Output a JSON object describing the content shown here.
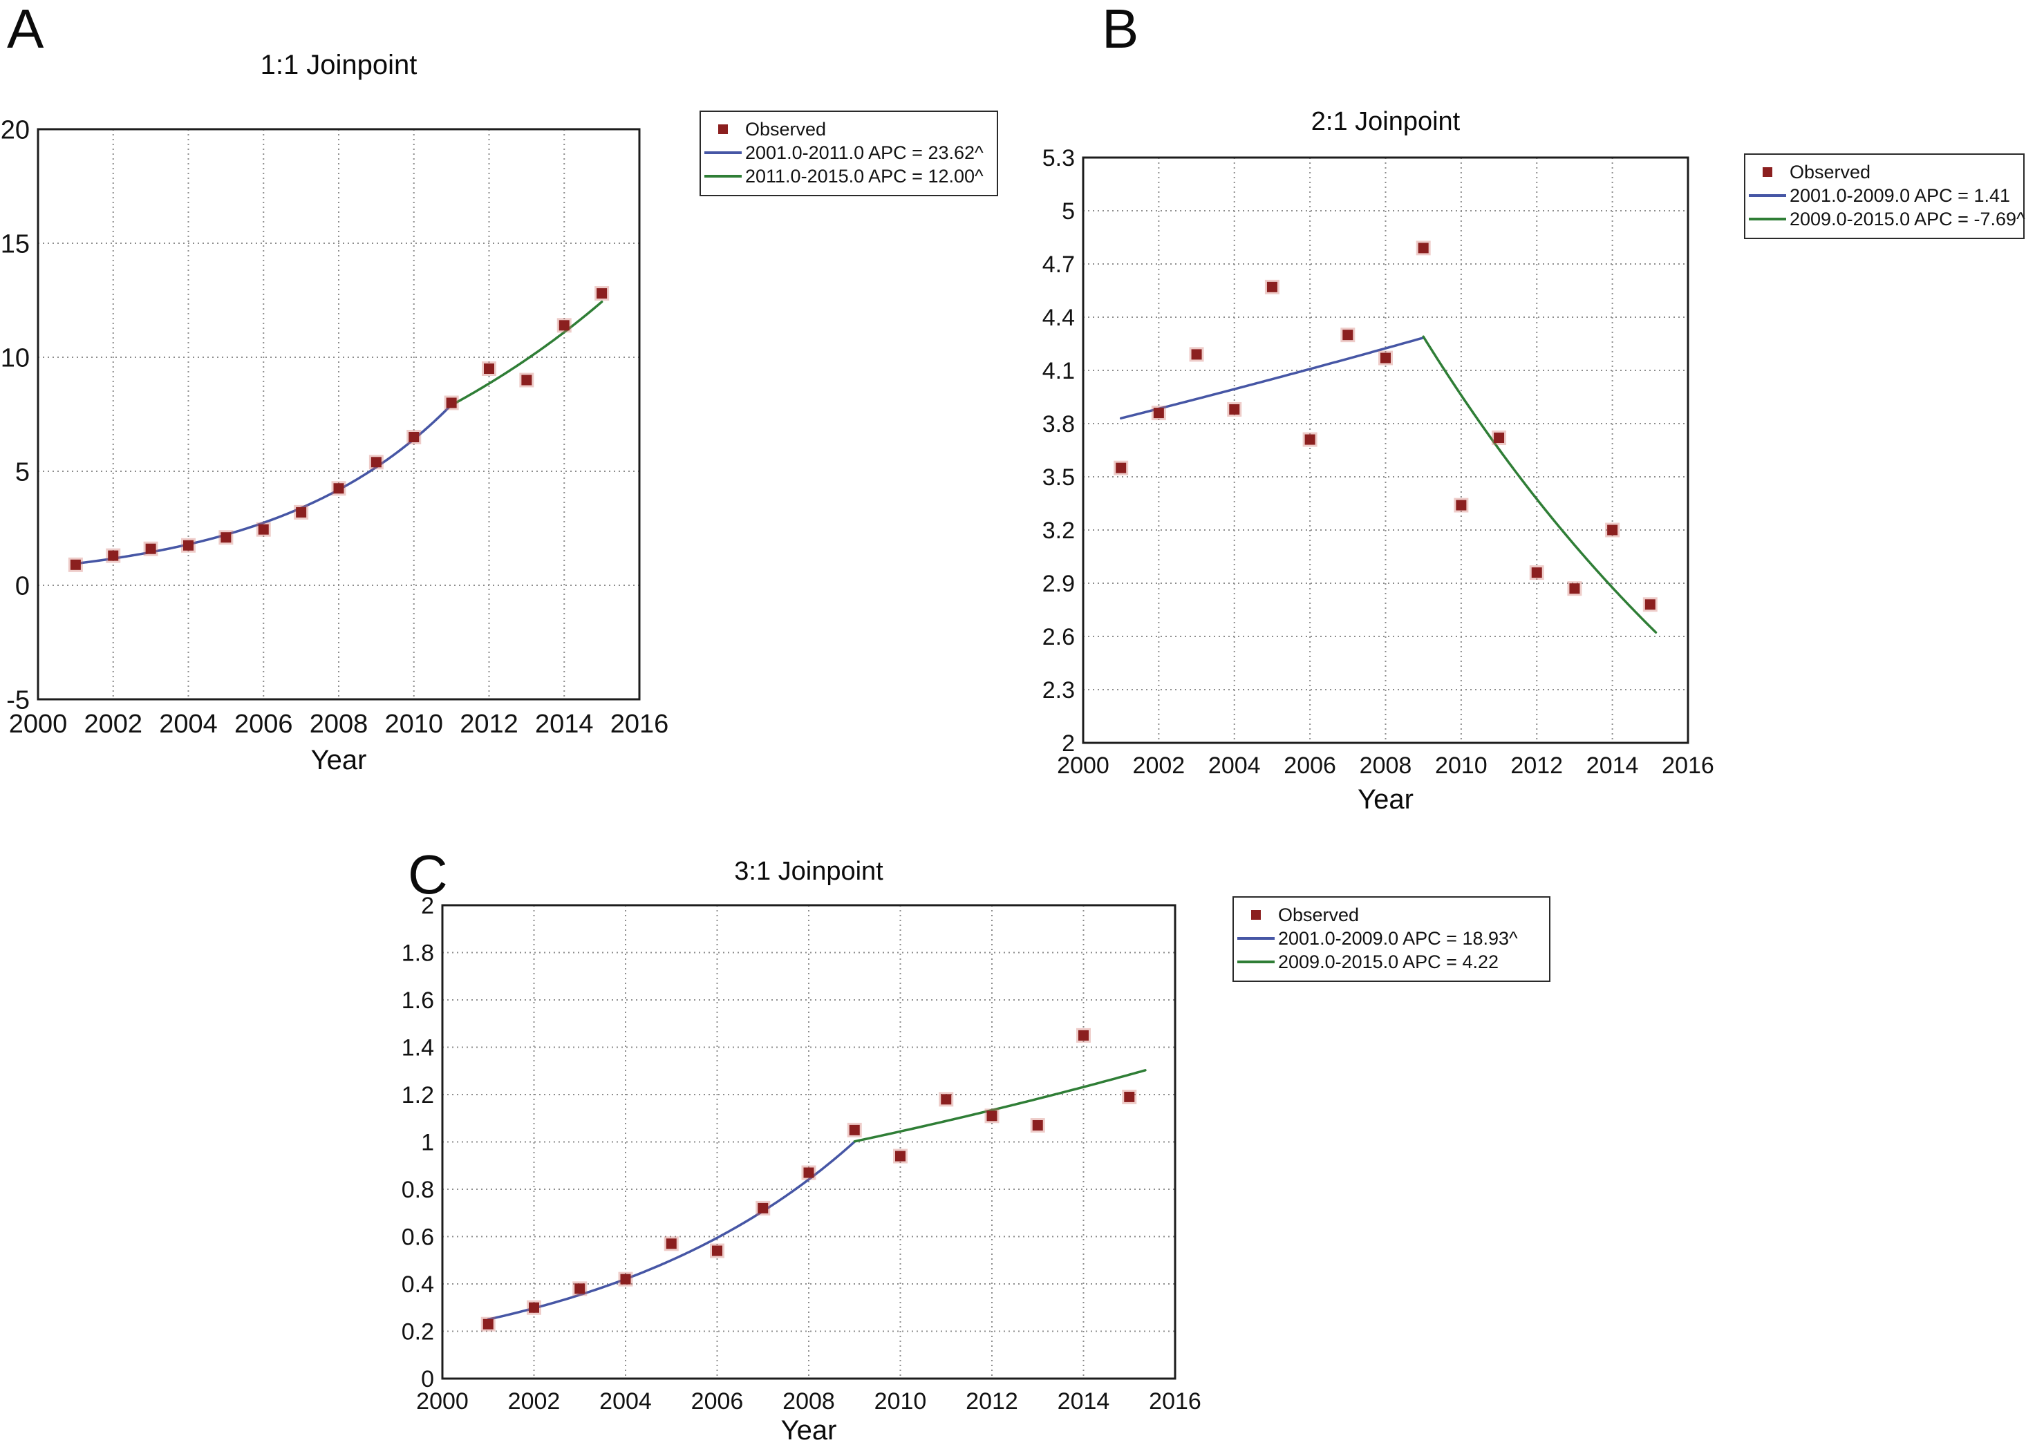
{
  "colors": {
    "observed": "#8b1f1f",
    "observed_halo": "rgba(205,110,100,0.35)",
    "segment1": "#4656a5",
    "segment2": "#2f7e36",
    "grid": "#8c8c8c",
    "frame": "#1c1c1c",
    "text": "#121212"
  },
  "chart_data": [
    {
      "type": "scatter",
      "panel_label": "A",
      "title": "1:1 Joinpoint",
      "xlabel": "Year",
      "ylabel": "",
      "xlim": [
        2000,
        2016
      ],
      "ylim": [
        -5,
        20
      ],
      "xticks": [
        2000,
        2002,
        2004,
        2006,
        2008,
        2010,
        2012,
        2014,
        2016
      ],
      "xtick_labels": [
        "2000",
        "2002",
        "2004",
        "2006",
        "2008",
        "2010",
        "2012",
        "2014",
        "2016"
      ],
      "yticks": [
        -5,
        0,
        5,
        10,
        15,
        20
      ],
      "ytick_labels": [
        "-5",
        "0",
        "5",
        "10",
        "15",
        "20"
      ],
      "x": [
        2001,
        2002,
        2003,
        2004,
        2005,
        2006,
        2007,
        2008,
        2009,
        2010,
        2011,
        2012,
        2013,
        2014,
        2015
      ],
      "observed_values": [
        0.9,
        1.3,
        1.6,
        1.75,
        2.1,
        2.45,
        3.2,
        4.25,
        5.4,
        6.5,
        8.0,
        9.5,
        9.0,
        11.4,
        12.8
      ],
      "segments": [
        {
          "label": "2001.0-2011.0 APC = 23.62^",
          "color_key": "segment1",
          "x0": 2001,
          "x1": 2011,
          "y0": 0.95,
          "apc": 23.62
        },
        {
          "label": "2011.0-2015.0 APC = 12.00^",
          "color_key": "segment2",
          "x0": 2011,
          "x1": 2015,
          "y0": 7.9,
          "apc": 12.0
        }
      ],
      "legend": [
        {
          "label": "Observed"
        },
        {
          "label": "2001.0-2011.0 APC = 23.62^"
        },
        {
          "label": "2011.0-2015.0 APC = 12.00^"
        }
      ]
    },
    {
      "type": "scatter",
      "panel_label": "B",
      "title": "2:1 Joinpoint",
      "xlabel": "Year",
      "ylabel": "",
      "xlim": [
        2000,
        2016
      ],
      "ylim": [
        2,
        5.3
      ],
      "xticks": [
        2000,
        2002,
        2004,
        2006,
        2008,
        2010,
        2012,
        2014,
        2016
      ],
      "xtick_labels": [
        "2000",
        "2002",
        "2004",
        "2006",
        "2008",
        "2010",
        "2012",
        "2014",
        "2016"
      ],
      "yticks": [
        2,
        2.3,
        2.6,
        2.9,
        3.2,
        3.5,
        3.8,
        4.1,
        4.4,
        4.7,
        5,
        5.3
      ],
      "ytick_labels": [
        "2",
        "2.3",
        "2.6",
        "2.9",
        "3.2",
        "3.5",
        "3.8",
        "4.1",
        "4.4",
        "4.7",
        "5",
        "5.3"
      ],
      "x": [
        2001,
        2002,
        2003,
        2004,
        2005,
        2006,
        2007,
        2008,
        2009,
        2010,
        2011,
        2012,
        2013,
        2014,
        2015
      ],
      "observed_values": [
        3.55,
        3.86,
        4.19,
        3.88,
        4.57,
        3.71,
        4.3,
        4.17,
        4.79,
        3.34,
        3.72,
        2.96,
        2.87,
        3.2,
        2.78
      ],
      "segments": [
        {
          "label": "2001.0-2009.0 APC = 1.41",
          "color_key": "segment1",
          "x0": 2001,
          "x1": 2009,
          "y0": 3.83,
          "apc": 1.41
        },
        {
          "label": "2009.0-2015.0 APC = -7.69^",
          "color_key": "segment2",
          "x0": 2009,
          "x1": 2015.15,
          "y0": 4.29,
          "apc": -7.69
        }
      ],
      "legend": [
        {
          "label": "Observed"
        },
        {
          "label": "2001.0-2009.0 APC = 1.41"
        },
        {
          "label": "2009.0-2015.0 APC = -7.69^"
        }
      ]
    },
    {
      "type": "scatter",
      "panel_label": "C",
      "title": "3:1 Joinpoint",
      "xlabel": "Year",
      "ylabel": "",
      "xlim": [
        2000,
        2016
      ],
      "ylim": [
        0,
        2
      ],
      "xticks": [
        2000,
        2002,
        2004,
        2006,
        2008,
        2010,
        2012,
        2014,
        2016
      ],
      "xtick_labels": [
        "2000",
        "2002",
        "2004",
        "2006",
        "2008",
        "2010",
        "2012",
        "2014",
        "2016"
      ],
      "yticks": [
        0,
        0.2,
        0.4,
        0.6,
        0.8,
        1,
        1.2,
        1.4,
        1.6,
        1.8,
        2
      ],
      "ytick_labels": [
        "0",
        "0.2",
        "0.4",
        "0.6",
        "0.8",
        "1",
        "1.2",
        "1.4",
        "1.6",
        "1.8",
        "2"
      ],
      "x": [
        2001,
        2002,
        2003,
        2004,
        2005,
        2006,
        2007,
        2008,
        2009,
        2010,
        2011,
        2012,
        2013,
        2014,
        2015
      ],
      "observed_values": [
        0.23,
        0.3,
        0.38,
        0.42,
        0.57,
        0.54,
        0.72,
        0.87,
        1.05,
        0.94,
        1.18,
        1.11,
        1.07,
        1.45,
        1.19
      ],
      "segments": [
        {
          "label": "2001.0-2009.0 APC = 18.93^",
          "color_key": "segment1",
          "x0": 2001,
          "x1": 2009,
          "y0": 0.25,
          "apc": 18.93
        },
        {
          "label": "2009.0-2015.0 APC = 4.22",
          "color_key": "segment2",
          "x0": 2009,
          "x1": 2015.35,
          "y0": 1.002,
          "apc": 4.22
        }
      ],
      "legend": [
        {
          "label": "Observed"
        },
        {
          "label": "2001.0-2009.0 APC = 18.93^"
        },
        {
          "label": "2009.0-2015.0 APC = 4.22"
        }
      ]
    }
  ]
}
